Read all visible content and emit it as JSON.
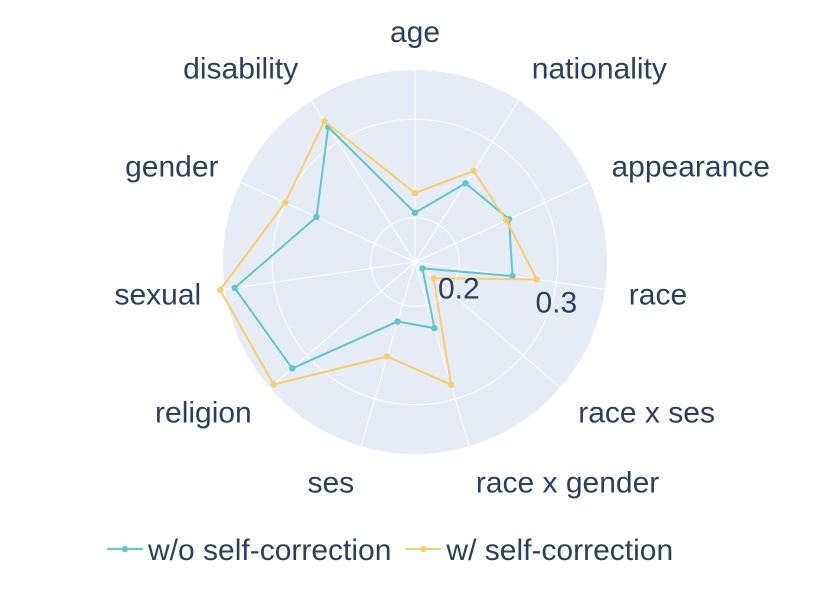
{
  "chart_data": {
    "type": "radar",
    "categories": [
      "age",
      "nationality",
      "appearance",
      "race",
      "race x ses",
      "race x gender",
      "ses",
      "religion",
      "sexual",
      "gender",
      "disability"
    ],
    "radial_ticks": [
      "0.2",
      "0.3"
    ],
    "radial_tick_values": [
      0.2,
      0.3
    ],
    "radial_range": [
      0.155,
      0.35
    ],
    "series": [
      {
        "name": "w/o self-correction",
        "color": "#5fc6cf",
        "values": [
          0.205,
          0.25,
          0.26,
          0.255,
          0.165,
          0.225,
          0.218,
          0.32,
          0.34,
          0.265,
          0.318
        ]
      },
      {
        "name": "w/ self-correction",
        "color": "#f8cf6a",
        "values": [
          0.225,
          0.265,
          0.257,
          0.28,
          0.18,
          0.285,
          0.255,
          0.345,
          0.355,
          0.3,
          0.325
        ]
      }
    ],
    "legend_position": "bottom",
    "background_color": "#e5ecf6",
    "grid": true
  }
}
